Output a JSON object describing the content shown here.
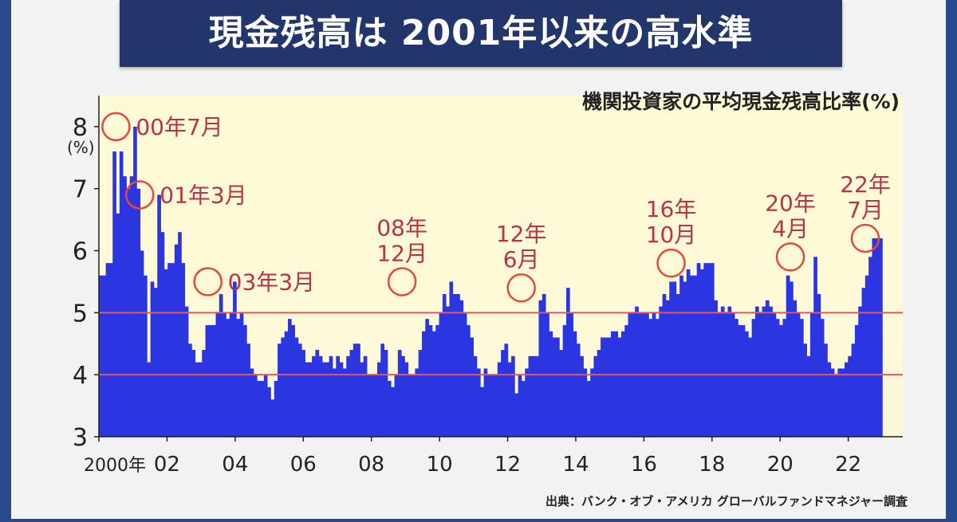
{
  "title": "現金残高は 2001年以来の高水準",
  "subtitle": "機関投資家の平均現金残高比率(%)",
  "source": "出典：バンク・オブ・アメリカ グローバルファンドマネジャー調査",
  "colors": {
    "bar": "#2b35e0",
    "refline": "#e05a66",
    "annotation": "#b8334a",
    "bg_top": "#fdfbd6",
    "bg_bottom": "#fff8d8"
  },
  "chart_data": {
    "type": "bar",
    "ylabel": "(%)",
    "ylim": [
      3,
      8.5
    ],
    "yticks": [
      3,
      4,
      5,
      6,
      7,
      8
    ],
    "xlim": [
      2000,
      2023.6
    ],
    "xticks": [
      {
        "x": 2000,
        "label": "2000年"
      },
      {
        "x": 2002,
        "label": "02"
      },
      {
        "x": 2004,
        "label": "04"
      },
      {
        "x": 2006,
        "label": "06"
      },
      {
        "x": 2008,
        "label": "08"
      },
      {
        "x": 2010,
        "label": "10"
      },
      {
        "x": 2012,
        "label": "12"
      },
      {
        "x": 2014,
        "label": "14"
      },
      {
        "x": 2016,
        "label": "16"
      },
      {
        "x": 2018,
        "label": "18"
      },
      {
        "x": 2020,
        "label": "20"
      },
      {
        "x": 2022,
        "label": "22"
      }
    ],
    "reference_lines": [
      5.0,
      4.0
    ],
    "series": [
      {
        "values": [
          5.6,
          5.6,
          5.8,
          5.8,
          7.6,
          6.6,
          7.6,
          7.2,
          7.0,
          7.2,
          8.0,
          7.0,
          6.0,
          5.6,
          4.2,
          5.5,
          5.4,
          6.9,
          6.3,
          5.7,
          5.8,
          5.8,
          6.1,
          6.3,
          5.8,
          5.1,
          4.5,
          4.4,
          4.2,
          4.2,
          4.4,
          4.8,
          4.8,
          4.8,
          5.0,
          5.3,
          5.0,
          4.9,
          5.0,
          5.5,
          4.9,
          5.0,
          4.8,
          4.5,
          4.1,
          4.0,
          3.9,
          3.9,
          4.0,
          3.8,
          3.6,
          3.9,
          4.5,
          4.6,
          4.7,
          4.9,
          4.8,
          4.6,
          4.5,
          4.4,
          4.2,
          4.2,
          4.3,
          4.4,
          4.3,
          4.2,
          4.2,
          4.3,
          4.1,
          4.3,
          4.2,
          4.1,
          4.3,
          4.4,
          4.5,
          4.5,
          4.2,
          4.3,
          4.0,
          4.0,
          4.0,
          4.2,
          4.5,
          4.4,
          3.9,
          3.8,
          4.0,
          4.4,
          4.3,
          4.2,
          4.0,
          4.0,
          4.1,
          4.4,
          4.7,
          4.9,
          4.8,
          4.7,
          4.8,
          5.0,
          5.3,
          5.1,
          5.5,
          5.3,
          5.3,
          5.2,
          5.0,
          4.8,
          4.6,
          4.3,
          4.1,
          3.8,
          4.1,
          4.0,
          4.0,
          4.0,
          4.2,
          4.4,
          4.5,
          4.2,
          4.3,
          3.7,
          4.0,
          3.9,
          4.1,
          4.3,
          4.3,
          4.3,
          5.2,
          5.3,
          5.0,
          4.7,
          4.6,
          4.6,
          4.4,
          4.8,
          5.4,
          5.0,
          4.7,
          4.5,
          4.3,
          4.1,
          3.9,
          4.1,
          4.3,
          4.4,
          4.6,
          4.6,
          4.6,
          4.7,
          4.7,
          4.6,
          4.7,
          4.8,
          5.0,
          5.0,
          5.1,
          5.0,
          5.0,
          5.0,
          4.9,
          5.0,
          4.9,
          5.1,
          5.3,
          5.2,
          5.5,
          5.5,
          5.3,
          5.6,
          5.5,
          5.7,
          5.6,
          5.6,
          5.8,
          5.7,
          5.8,
          5.8,
          5.8,
          5.2,
          5.0,
          5.1,
          5.0,
          5.1,
          5.0,
          4.9,
          4.8,
          4.8,
          4.7,
          4.6,
          4.9,
          5.1,
          5.0,
          5.1,
          5.2,
          5.1,
          5.0,
          4.9,
          4.8,
          4.9,
          5.6,
          5.5,
          5.2,
          5.0,
          4.9,
          4.5,
          4.3,
          5.0,
          5.9,
          5.3,
          4.9,
          4.5,
          4.2,
          4.1,
          4.0,
          4.1,
          4.1,
          4.2,
          4.3,
          4.5,
          4.8,
          5.1,
          5.4,
          5.6,
          5.9,
          6.2,
          6.2,
          6.2
        ]
      }
    ],
    "annotations": [
      {
        "label": "00年7月",
        "x": 2000.5,
        "y": 8.0,
        "label_pos": "right"
      },
      {
        "label": "01年3月",
        "x": 2001.2,
        "y": 6.9,
        "label_pos": "right"
      },
      {
        "label": "03年3月",
        "x": 2003.2,
        "y": 5.5,
        "label_pos": "right"
      },
      {
        "label": "08年\n12月",
        "x": 2008.9,
        "y": 5.5,
        "label_pos": "top"
      },
      {
        "label": "12年\n6月",
        "x": 2012.4,
        "y": 5.4,
        "label_pos": "top"
      },
      {
        "label": "16年\n10月",
        "x": 2016.8,
        "y": 5.8,
        "label_pos": "top"
      },
      {
        "label": "20年\n4月",
        "x": 2020.3,
        "y": 5.9,
        "label_pos": "top"
      },
      {
        "label": "22年\n7月",
        "x": 2022.5,
        "y": 6.2,
        "label_pos": "top"
      }
    ]
  }
}
